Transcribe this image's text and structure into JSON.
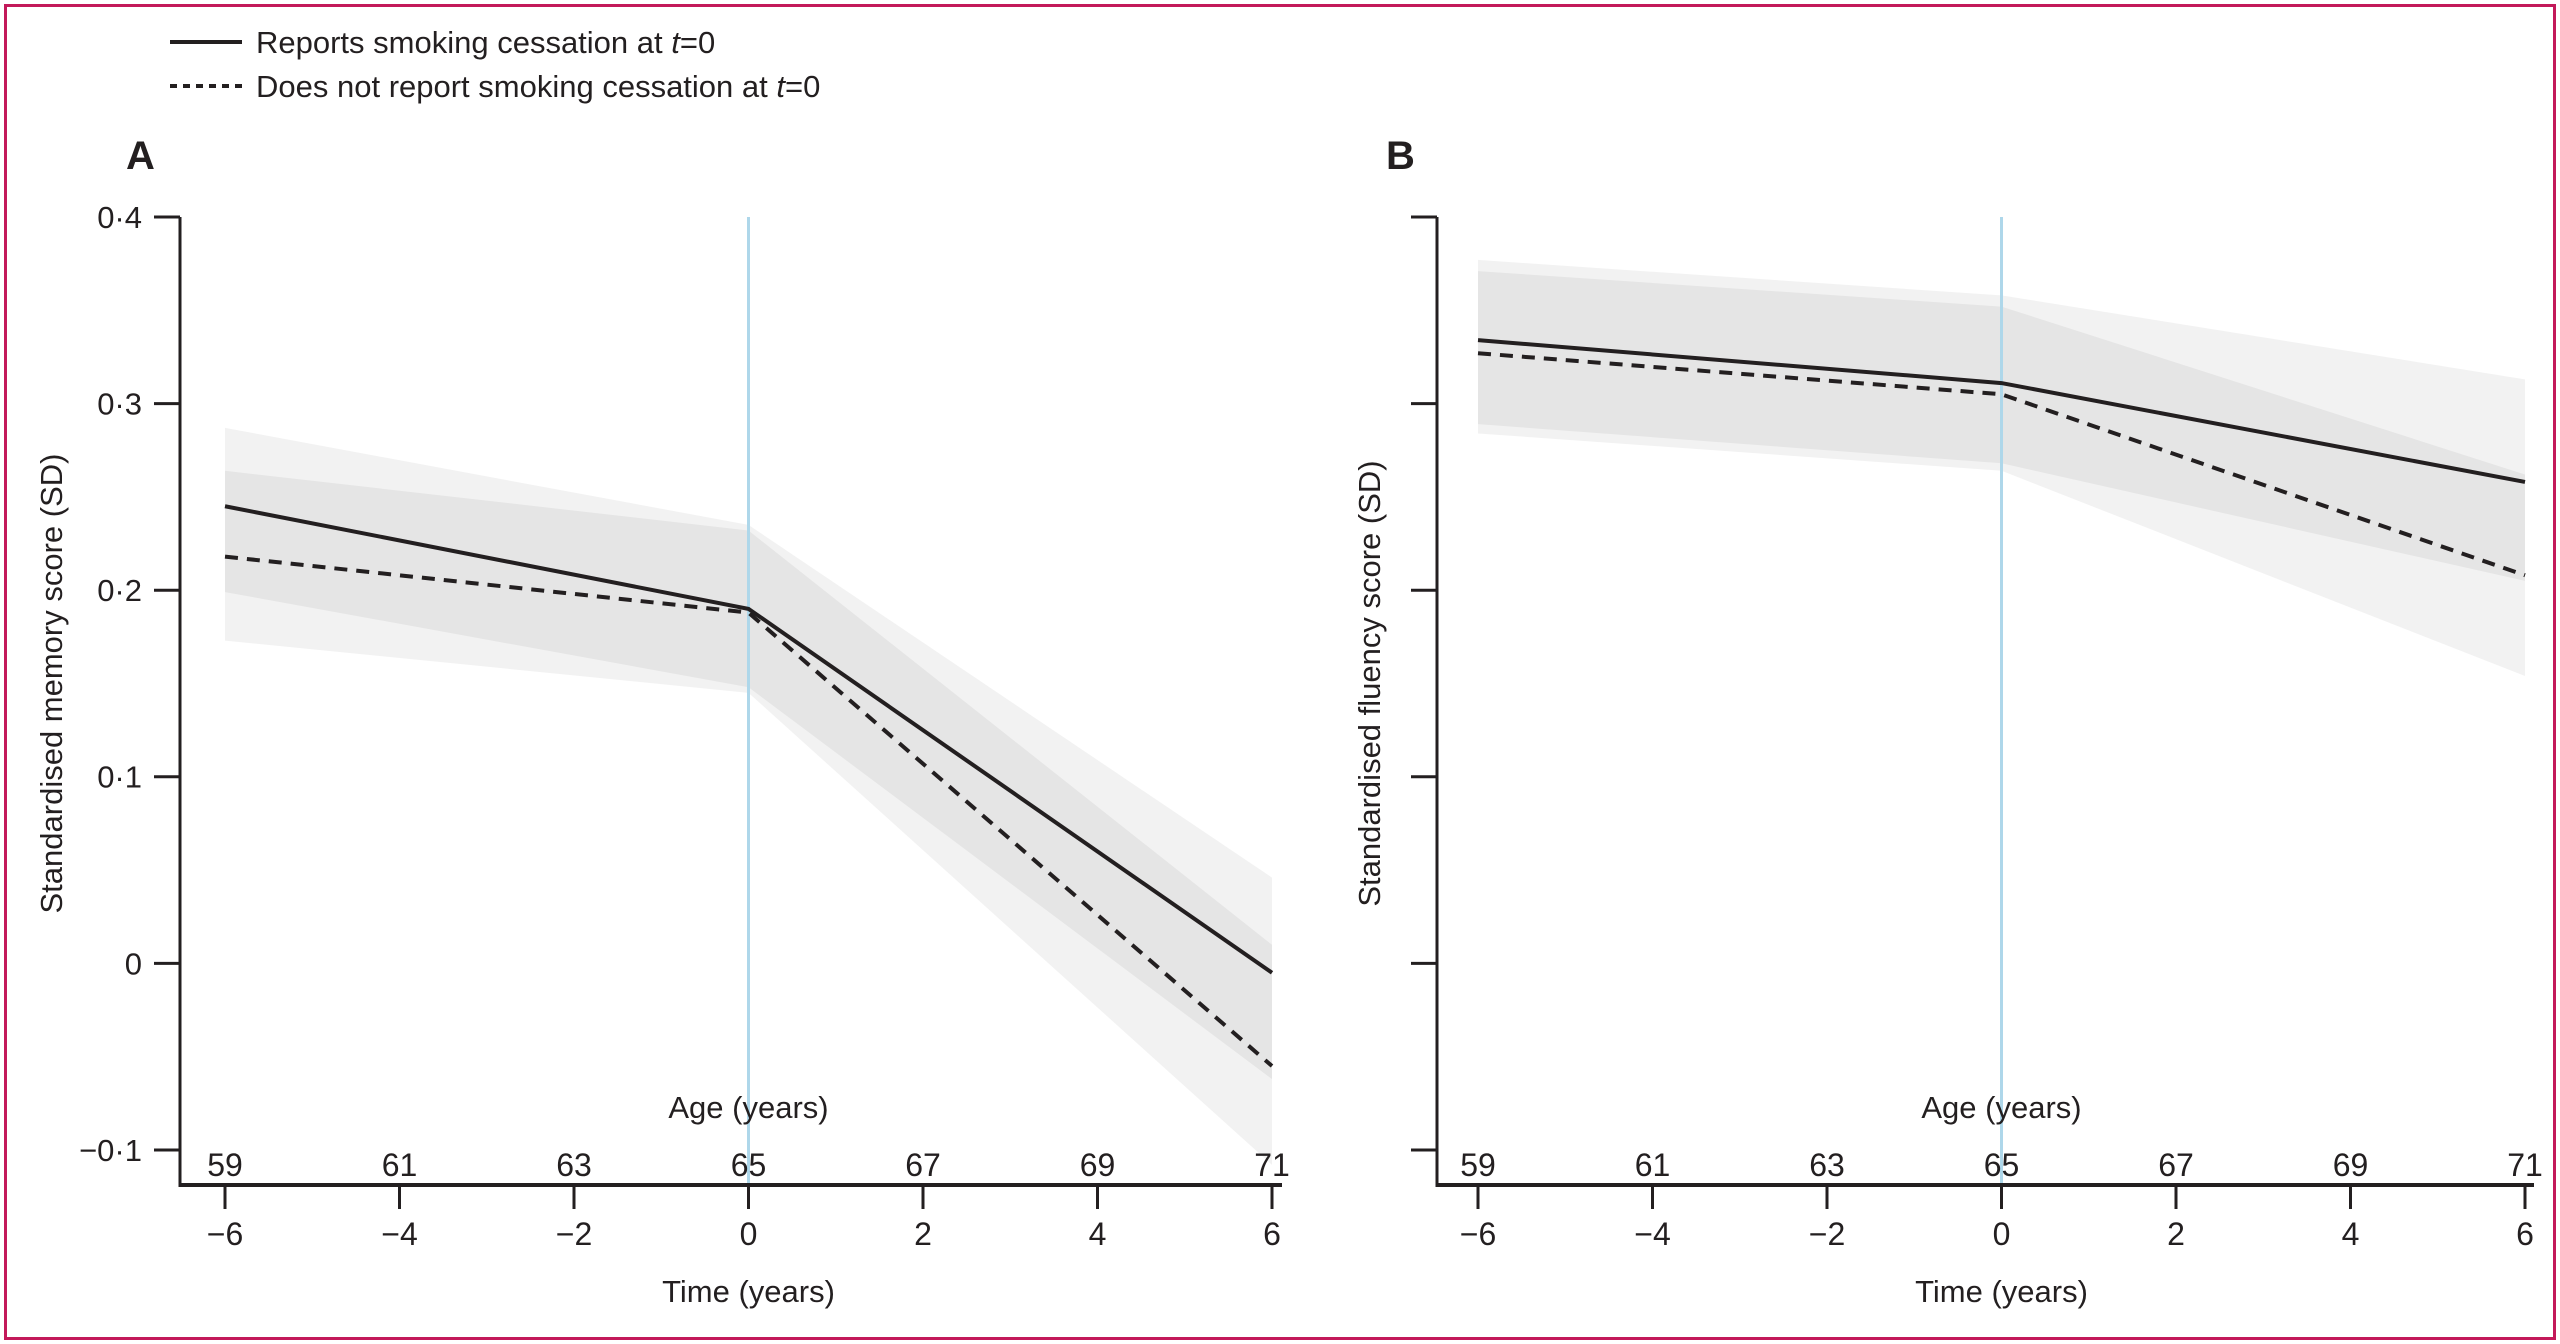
{
  "figure": {
    "border_color": "#c3195a",
    "background_color": "#ffffff",
    "reference_line_color": "#aed7ea",
    "band_color": "#000000",
    "band_opacity": 0.052,
    "line_color": "#231f20"
  },
  "legend": {
    "items": [
      {
        "style": "solid",
        "prefix": "Reports smoking cessation at ",
        "t_var": "t",
        "suffix": "=0"
      },
      {
        "style": "dashed",
        "prefix": "Does not report smoking cessation at ",
        "t_var": "t",
        "suffix": "=0"
      }
    ]
  },
  "chart_data": [
    {
      "type": "line",
      "panel_label": "A",
      "ylabel": "Standardised memory score (SD)",
      "xlabel_top": "Age (years)",
      "xlabel_bottom": "Time (years)",
      "xlim": [
        -6,
        6
      ],
      "ylim": [
        -0.1,
        0.4
      ],
      "x_ticks": [
        -6,
        -4,
        -2,
        0,
        2,
        4,
        6
      ],
      "x_time_labels": [
        "−6",
        "−4",
        "−2",
        "0",
        "2",
        "4",
        "6"
      ],
      "x_age_labels": [
        "59",
        "61",
        "63",
        "65",
        "67",
        "69",
        "71"
      ],
      "y_ticks": [
        0.4,
        0.3,
        0.2,
        0.1,
        0,
        -0.1
      ],
      "y_tick_labels": [
        "0·4",
        "0·3",
        "0·2",
        "0·1",
        "0",
        "−0·1"
      ],
      "show_y_tick_labels": true,
      "reference_line_x": 0,
      "grid": false,
      "legend_position": "top-left-of-figure",
      "series": [
        {
          "name": "Reports smoking cessation at t=0",
          "style": "solid",
          "x": [
            -6,
            0,
            6
          ],
          "y": [
            0.245,
            0.19,
            -0.005
          ],
          "ci_upper": [
            0.287,
            0.235,
            0.046
          ],
          "ci_lower": [
            0.199,
            0.148,
            -0.062
          ]
        },
        {
          "name": "Does not report smoking cessation at t=0",
          "style": "dashed",
          "x": [
            -6,
            0,
            6
          ],
          "y": [
            0.218,
            0.188,
            -0.055
          ],
          "ci_upper": [
            0.264,
            0.232,
            0.01
          ],
          "ci_lower": [
            0.173,
            0.145,
            -0.108
          ]
        }
      ]
    },
    {
      "type": "line",
      "panel_label": "B",
      "ylabel": "Standardised fluency score (SD)",
      "xlabel_top": "Age (years)",
      "xlabel_bottom": "Time (years)",
      "xlim": [
        -6,
        6
      ],
      "ylim": [
        -0.1,
        0.4
      ],
      "x_ticks": [
        -6,
        -4,
        -2,
        0,
        2,
        4,
        6
      ],
      "x_time_labels": [
        "−6",
        "−4",
        "−2",
        "0",
        "2",
        "4",
        "6"
      ],
      "x_age_labels": [
        "59",
        "61",
        "63",
        "65",
        "67",
        "69",
        "71"
      ],
      "y_ticks": [
        0.4,
        0.3,
        0.2,
        0.1,
        0,
        -0.1
      ],
      "y_tick_labels": [],
      "show_y_tick_labels": false,
      "reference_line_x": 0,
      "grid": false,
      "legend_position": "none",
      "series": [
        {
          "name": "Reports smoking cessation at t=0",
          "style": "solid",
          "x": [
            -6,
            0,
            6
          ],
          "y": [
            0.334,
            0.311,
            0.258
          ],
          "ci_upper": [
            0.377,
            0.358,
            0.313
          ],
          "ci_lower": [
            0.289,
            0.268,
            0.205
          ]
        },
        {
          "name": "Does not report smoking cessation at t=0",
          "style": "dashed",
          "x": [
            -6,
            0,
            6
          ],
          "y": [
            0.327,
            0.305,
            0.208
          ],
          "ci_upper": [
            0.371,
            0.352,
            0.262
          ],
          "ci_lower": [
            0.284,
            0.264,
            0.154
          ]
        }
      ]
    }
  ]
}
